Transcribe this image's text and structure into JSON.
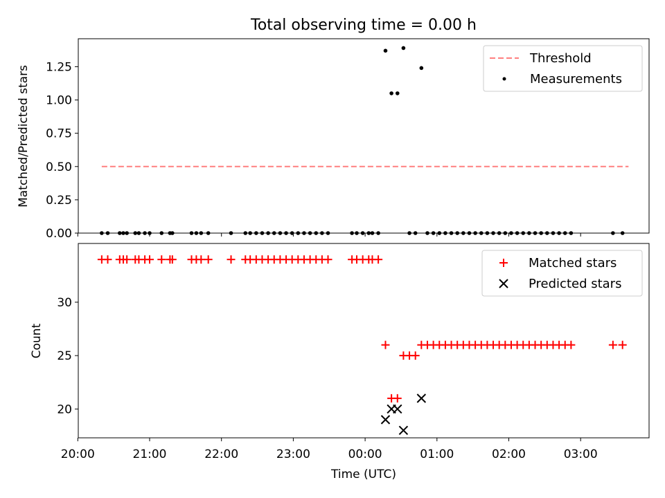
{
  "title": "Total observing time = 0.00 h",
  "chart_data": [
    {
      "type": "scatter",
      "panel": "top",
      "ylabel": "Matched/Predicted stars",
      "xlabel": "",
      "ylim": [
        0,
        1.46
      ],
      "yticks": [
        "0.00",
        "0.25",
        "0.50",
        "0.75",
        "1.00",
        "1.25"
      ],
      "legend_position": "top-right",
      "threshold": {
        "name": "Threshold",
        "value": 0.5,
        "x_start": "20:20",
        "x_end": "03:40",
        "color": "#ff7f7f"
      },
      "series": [
        {
          "name": "Measurements",
          "color": "#000000",
          "points": [
            [
              "20:20",
              0
            ],
            [
              "20:25",
              0
            ],
            [
              "20:35",
              0
            ],
            [
              "20:38",
              0
            ],
            [
              "20:41",
              0
            ],
            [
              "20:48",
              0
            ],
            [
              "20:51",
              0
            ],
            [
              "20:56",
              0
            ],
            [
              "21:00",
              0
            ],
            [
              "21:10",
              0
            ],
            [
              "21:17",
              0
            ],
            [
              "21:19",
              0
            ],
            [
              "21:35",
              0
            ],
            [
              "21:39",
              0
            ],
            [
              "21:43",
              0
            ],
            [
              "21:49",
              0
            ],
            [
              "22:08",
              0
            ],
            [
              "22:20",
              0
            ],
            [
              "22:24",
              0
            ],
            [
              "22:29",
              0
            ],
            [
              "22:34",
              0
            ],
            [
              "22:39",
              0
            ],
            [
              "22:44",
              0
            ],
            [
              "22:49",
              0
            ],
            [
              "22:54",
              0
            ],
            [
              "22:59",
              0
            ],
            [
              "23:04",
              0
            ],
            [
              "23:09",
              0
            ],
            [
              "23:14",
              0
            ],
            [
              "23:19",
              0
            ],
            [
              "23:24",
              0
            ],
            [
              "23:29",
              0
            ],
            [
              "23:49",
              0
            ],
            [
              "23:53",
              0
            ],
            [
              "23:58",
              0
            ],
            [
              "00:03",
              0
            ],
            [
              "00:06",
              0
            ],
            [
              "00:11",
              0
            ],
            [
              "00:17",
              1.37
            ],
            [
              "00:22",
              1.05
            ],
            [
              "00:27",
              1.05
            ],
            [
              "00:32",
              1.39
            ],
            [
              "00:37",
              0
            ],
            [
              "00:42",
              0
            ],
            [
              "00:47",
              1.24
            ],
            [
              "00:52",
              0
            ],
            [
              "00:57",
              0
            ],
            [
              "01:02",
              0
            ],
            [
              "01:07",
              0
            ],
            [
              "01:12",
              0
            ],
            [
              "01:17",
              0
            ],
            [
              "01:22",
              0
            ],
            [
              "01:27",
              0
            ],
            [
              "01:32",
              0
            ],
            [
              "01:37",
              0
            ],
            [
              "01:42",
              0
            ],
            [
              "01:47",
              0
            ],
            [
              "01:52",
              0
            ],
            [
              "01:57",
              0
            ],
            [
              "02:02",
              0
            ],
            [
              "02:07",
              0
            ],
            [
              "02:12",
              0
            ],
            [
              "02:17",
              0
            ],
            [
              "02:22",
              0
            ],
            [
              "02:27",
              0
            ],
            [
              "02:32",
              0
            ],
            [
              "02:37",
              0
            ],
            [
              "02:42",
              0
            ],
            [
              "02:47",
              0
            ],
            [
              "02:52",
              0
            ],
            [
              "03:27",
              0
            ],
            [
              "03:35",
              0
            ]
          ]
        }
      ]
    },
    {
      "type": "scatter",
      "panel": "bottom",
      "ylabel": "Count",
      "xlabel": "Time (UTC)",
      "ylim": [
        17.3,
        35.5
      ],
      "yticks": [
        "20",
        "25",
        "30"
      ],
      "legend_position": "top-right",
      "xticks": [
        "20:00",
        "21:00",
        "22:00",
        "23:00",
        "00:00",
        "01:00",
        "02:00",
        "03:00"
      ],
      "series": [
        {
          "name": "Matched stars",
          "marker": "plus",
          "color": "#ff0000",
          "points": [
            [
              "20:20",
              34
            ],
            [
              "20:25",
              34
            ],
            [
              "20:35",
              34
            ],
            [
              "20:38",
              34
            ],
            [
              "20:41",
              34
            ],
            [
              "20:48",
              34
            ],
            [
              "20:51",
              34
            ],
            [
              "20:56",
              34
            ],
            [
              "21:00",
              34
            ],
            [
              "21:10",
              34
            ],
            [
              "21:17",
              34
            ],
            [
              "21:19",
              34
            ],
            [
              "21:35",
              34
            ],
            [
              "21:39",
              34
            ],
            [
              "21:43",
              34
            ],
            [
              "21:49",
              34
            ],
            [
              "22:08",
              34
            ],
            [
              "22:20",
              34
            ],
            [
              "22:24",
              34
            ],
            [
              "22:29",
              34
            ],
            [
              "22:34",
              34
            ],
            [
              "22:39",
              34
            ],
            [
              "22:44",
              34
            ],
            [
              "22:49",
              34
            ],
            [
              "22:54",
              34
            ],
            [
              "22:59",
              34
            ],
            [
              "23:04",
              34
            ],
            [
              "23:09",
              34
            ],
            [
              "23:14",
              34
            ],
            [
              "23:19",
              34
            ],
            [
              "23:24",
              34
            ],
            [
              "23:29",
              34
            ],
            [
              "23:49",
              34
            ],
            [
              "23:53",
              34
            ],
            [
              "23:58",
              34
            ],
            [
              "00:03",
              34
            ],
            [
              "00:06",
              34
            ],
            [
              "00:11",
              34
            ],
            [
              "00:17",
              26
            ],
            [
              "00:22",
              21
            ],
            [
              "00:27",
              21
            ],
            [
              "00:32",
              25
            ],
            [
              "00:37",
              25
            ],
            [
              "00:42",
              25
            ],
            [
              "00:47",
              26
            ],
            [
              "00:52",
              26
            ],
            [
              "00:57",
              26
            ],
            [
              "01:02",
              26
            ],
            [
              "01:07",
              26
            ],
            [
              "01:12",
              26
            ],
            [
              "01:17",
              26
            ],
            [
              "01:22",
              26
            ],
            [
              "01:27",
              26
            ],
            [
              "01:32",
              26
            ],
            [
              "01:37",
              26
            ],
            [
              "01:42",
              26
            ],
            [
              "01:47",
              26
            ],
            [
              "01:52",
              26
            ],
            [
              "01:57",
              26
            ],
            [
              "02:02",
              26
            ],
            [
              "02:07",
              26
            ],
            [
              "02:12",
              26
            ],
            [
              "02:17",
              26
            ],
            [
              "02:22",
              26
            ],
            [
              "02:27",
              26
            ],
            [
              "02:32",
              26
            ],
            [
              "02:37",
              26
            ],
            [
              "02:42",
              26
            ],
            [
              "02:47",
              26
            ],
            [
              "02:52",
              26
            ],
            [
              "03:27",
              26
            ],
            [
              "03:35",
              26
            ]
          ]
        },
        {
          "name": "Predicted stars",
          "marker": "x",
          "color": "#000000",
          "points": [
            [
              "00:17",
              19
            ],
            [
              "00:22",
              20
            ],
            [
              "00:27",
              20
            ],
            [
              "00:32",
              18
            ],
            [
              "00:47",
              21
            ]
          ]
        }
      ]
    }
  ]
}
